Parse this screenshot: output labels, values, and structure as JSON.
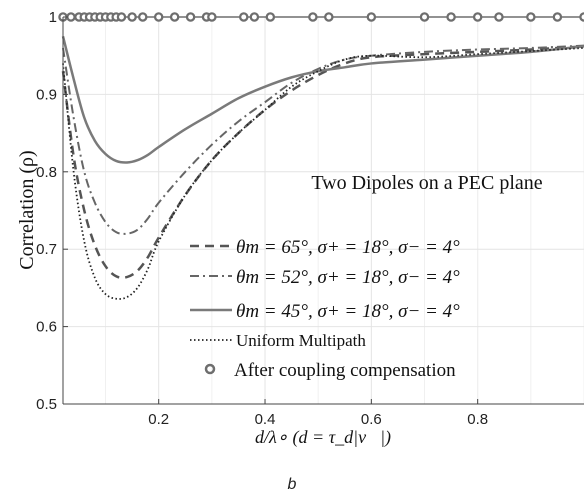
{
  "chart_data": {
    "type": "line",
    "title": "",
    "panel_label": "b",
    "annotation": "Two Dipoles on a PEC plane",
    "xlabel": "d/λ∘ (d = τ_d|v⃗|)",
    "ylabel": "Correlation (ρ)",
    "xlim": [
      0.02,
      1.0
    ],
    "ylim": [
      0.5,
      1.0
    ],
    "xticks": [
      0.2,
      0.4,
      0.6,
      0.8
    ],
    "xtick_labels": [
      "0.2",
      "0.4",
      "0.6",
      "0.8"
    ],
    "yticks": [
      0.5,
      0.6,
      0.7,
      0.8,
      0.9,
      1.0
    ],
    "ytick_labels": [
      "0.5",
      "0.6",
      "0.7",
      "0.8",
      "0.9",
      "1"
    ],
    "grid": true,
    "legend_position": "lower-left",
    "series": [
      {
        "name": "θm = 65°, σ+ = 18°, σ− = 4°",
        "style": "dashed",
        "color": "#555555",
        "x": [
          0.02,
          0.04,
          0.06,
          0.08,
          0.1,
          0.12,
          0.14,
          0.16,
          0.18,
          0.2,
          0.25,
          0.3,
          0.35,
          0.4,
          0.45,
          0.5,
          0.55,
          0.6,
          0.7,
          0.8,
          0.9,
          1.0
        ],
        "y": [
          0.93,
          0.82,
          0.75,
          0.705,
          0.678,
          0.665,
          0.664,
          0.672,
          0.69,
          0.715,
          0.77,
          0.815,
          0.85,
          0.88,
          0.905,
          0.925,
          0.94,
          0.948,
          0.952,
          0.955,
          0.958,
          0.962
        ]
      },
      {
        "name": "θm = 52°, σ+ = 18°, σ− = 4°",
        "style": "dash-dot",
        "color": "#666666",
        "x": [
          0.02,
          0.04,
          0.06,
          0.08,
          0.1,
          0.12,
          0.14,
          0.16,
          0.18,
          0.2,
          0.25,
          0.3,
          0.35,
          0.4,
          0.45,
          0.5,
          0.55,
          0.6,
          0.7,
          0.8,
          0.9,
          1.0
        ],
        "y": [
          0.96,
          0.87,
          0.8,
          0.76,
          0.735,
          0.722,
          0.72,
          0.725,
          0.74,
          0.76,
          0.8,
          0.835,
          0.865,
          0.89,
          0.915,
          0.933,
          0.945,
          0.95,
          0.955,
          0.958,
          0.96,
          0.963
        ]
      },
      {
        "name": "θm = 45°, σ+ = 18°, σ− = 4°",
        "style": "solid",
        "color": "#7a7a7a",
        "x": [
          0.02,
          0.04,
          0.06,
          0.08,
          0.1,
          0.12,
          0.14,
          0.16,
          0.18,
          0.2,
          0.25,
          0.3,
          0.35,
          0.4,
          0.45,
          0.5,
          0.55,
          0.6,
          0.7,
          0.8,
          0.9,
          1.0
        ],
        "y": [
          0.975,
          0.92,
          0.87,
          0.84,
          0.823,
          0.814,
          0.812,
          0.815,
          0.822,
          0.832,
          0.855,
          0.875,
          0.895,
          0.91,
          0.922,
          0.93,
          0.935,
          0.94,
          0.945,
          0.95,
          0.955,
          0.962
        ]
      },
      {
        "name": "Uniform Multipath",
        "style": "dotted",
        "color": "#222222",
        "x": [
          0.02,
          0.04,
          0.06,
          0.08,
          0.1,
          0.12,
          0.14,
          0.16,
          0.18,
          0.2,
          0.25,
          0.3,
          0.35,
          0.4,
          0.45,
          0.5,
          0.55,
          0.6,
          0.7,
          0.8,
          0.9,
          1.0
        ],
        "y": [
          0.94,
          0.8,
          0.71,
          0.663,
          0.642,
          0.636,
          0.638,
          0.65,
          0.675,
          0.71,
          0.77,
          0.815,
          0.85,
          0.88,
          0.91,
          0.93,
          0.945,
          0.95,
          0.948,
          0.952,
          0.956,
          0.96
        ]
      },
      {
        "name": "After coupling compensation",
        "style": "markers",
        "color": "#6e6e6e",
        "x": [
          0.02,
          0.035,
          0.05,
          0.06,
          0.07,
          0.08,
          0.09,
          0.1,
          0.11,
          0.12,
          0.13,
          0.15,
          0.17,
          0.2,
          0.23,
          0.26,
          0.29,
          0.3,
          0.36,
          0.38,
          0.41,
          0.49,
          0.52,
          0.6,
          0.7,
          0.75,
          0.8,
          0.84,
          0.9,
          0.95,
          1.0
        ],
        "y": [
          1,
          1,
          1,
          1,
          1,
          1,
          1,
          1,
          1,
          1,
          1,
          1,
          1,
          1,
          1,
          1,
          1,
          1,
          1,
          1,
          1,
          1,
          1,
          1,
          1,
          1,
          1,
          1,
          1,
          1,
          1
        ]
      }
    ]
  }
}
